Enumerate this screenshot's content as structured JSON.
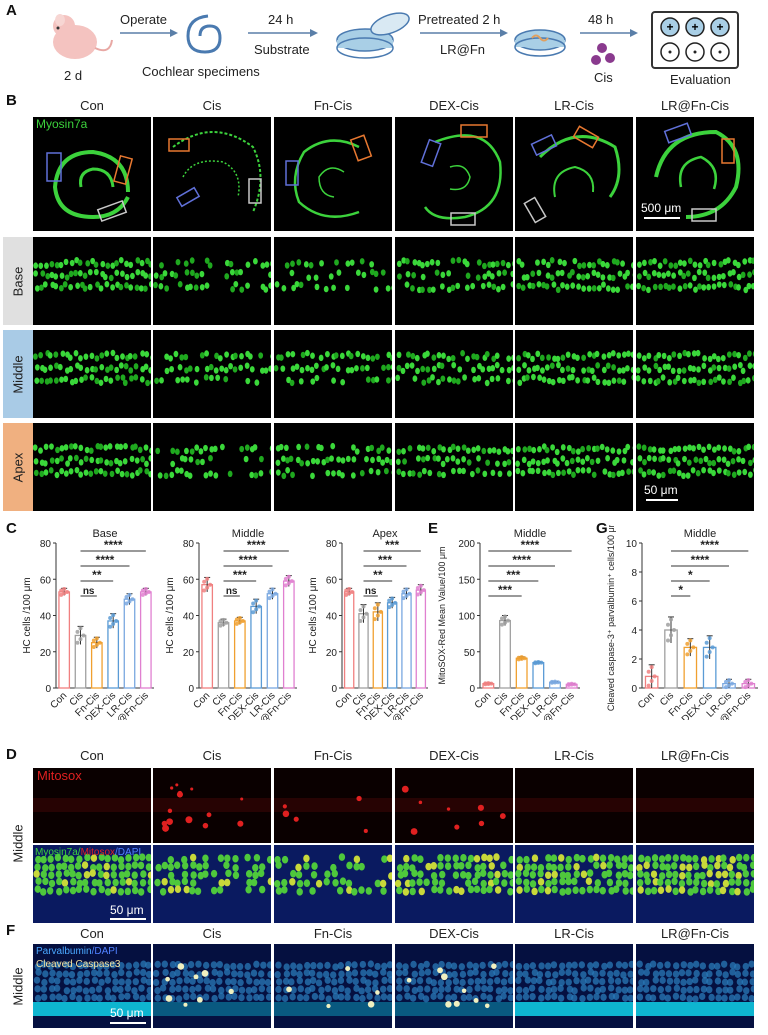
{
  "panelA": {
    "label": "A",
    "steps": {
      "age": "2 d",
      "operate": "Operate",
      "specimens": "Cochlear specimens",
      "time1": "24 h",
      "substrate": "Substrate",
      "pretreat": "Pretreated 2 h",
      "agent": "LR@Fn",
      "time2": "48 h",
      "cis": "Cis",
      "evaluation": "Evaluation"
    }
  },
  "panelB": {
    "label": "B",
    "groups": [
      "Con",
      "Cis",
      "Fn-Cis",
      "DEX-Cis",
      "LR-Cis",
      "LR@Fn-Cis"
    ],
    "stain": "Myosin7a",
    "rows": [
      "Base",
      "Middle",
      "Apex"
    ],
    "scale_top": "500 μm",
    "scale_bottom": "50 μm"
  },
  "panelC": {
    "label": "C",
    "ylabel": "HC cells /100 μm",
    "charts": [
      {
        "title": "Base",
        "sig": [
          "****",
          "****",
          "**",
          "ns"
        ]
      },
      {
        "title": "Middle",
        "sig": [
          "****",
          "****",
          "***",
          "ns"
        ]
      },
      {
        "title": "Apex",
        "sig": [
          "***",
          "***",
          "**",
          "ns"
        ]
      }
    ]
  },
  "panelE": {
    "label": "E",
    "title": "Middle",
    "ylabel": "MitoSOX-Red Mean Value/100 μm",
    "sig": [
      "****",
      "****",
      "***",
      "***"
    ]
  },
  "panelG": {
    "label": "G",
    "title": "Middle",
    "ylabel": "Cleaved caspase-3⁺ parvalbumin⁺ cells/100 μm",
    "sig": [
      "****",
      "****",
      "*",
      "*"
    ]
  },
  "panelD": {
    "label": "D",
    "side": "Middle",
    "stain_top": "Mitosox",
    "stain_bottom_a": "Myosin7a/",
    "stain_bottom_b": "Mitosox",
    "stain_bottom_c": "/DAPI",
    "scale": "50 μm"
  },
  "panelF": {
    "label": "F",
    "side": "Middle",
    "stain_a": "Parvalbumin",
    "stain_b": "/DAPI",
    "stain_c": "Cleaved Caspase3",
    "scale": "50 μm"
  },
  "chart_data": [
    {
      "type": "bar",
      "title": "Base",
      "ylabel": "HC cells /100 μm",
      "ylim": [
        0,
        80
      ],
      "yticks": [
        0,
        20,
        40,
        60,
        80
      ],
      "categories": [
        "Con",
        "Cis",
        "Fn-Cis",
        "DEX-Cis",
        "LR-Cis",
        "LR@Fn-Cis"
      ],
      "values": [
        53,
        29,
        25,
        37,
        49,
        53
      ],
      "errors": [
        2,
        5,
        3,
        4,
        3,
        2
      ],
      "colors": [
        "#f08080",
        "#a0a0a0",
        "#f0a030",
        "#5b9bd5",
        "#7aa8e0",
        "#e080d0"
      ]
    },
    {
      "type": "bar",
      "title": "Middle",
      "ylabel": "HC cells /100 μm",
      "ylim": [
        0,
        80
      ],
      "yticks": [
        0,
        20,
        40,
        60,
        80
      ],
      "categories": [
        "Con",
        "Cis",
        "Fn-Cis",
        "DEX-Cis",
        "LR-Cis",
        "LR@Fn-Cis"
      ],
      "values": [
        57,
        36,
        37,
        45,
        52,
        59
      ],
      "errors": [
        4,
        2,
        2,
        4,
        3,
        3
      ],
      "colors": [
        "#f08080",
        "#a0a0a0",
        "#f0a030",
        "#5b9bd5",
        "#7aa8e0",
        "#e080d0"
      ]
    },
    {
      "type": "bar",
      "title": "Apex",
      "ylabel": "HC cells /100 μm",
      "ylim": [
        0,
        80
      ],
      "yticks": [
        0,
        20,
        40,
        60,
        80
      ],
      "categories": [
        "Con",
        "Cis",
        "Fn-Cis",
        "DEX-Cis",
        "LR-Cis",
        "LR@Fn-Cis"
      ],
      "values": [
        53,
        41,
        42,
        47,
        52,
        54
      ],
      "errors": [
        2,
        5,
        5,
        3,
        3,
        3
      ],
      "colors": [
        "#f08080",
        "#a0a0a0",
        "#f0a030",
        "#5b9bd5",
        "#7aa8e0",
        "#e080d0"
      ]
    },
    {
      "type": "bar",
      "title": "Middle",
      "ylabel": "MitoSOX-Red Mean Value/100 μm",
      "ylim": [
        0,
        200
      ],
      "yticks": [
        0,
        50,
        100,
        150,
        200
      ],
      "categories": [
        "Con",
        "Cis",
        "Fn-Cis",
        "DEX-Cis",
        "LR-Cis",
        "LR@Fn-Cis"
      ],
      "values": [
        6,
        93,
        41,
        35,
        8,
        5
      ],
      "errors": [
        1,
        7,
        2,
        1,
        1,
        1
      ],
      "colors": [
        "#f08080",
        "#a0a0a0",
        "#f0a030",
        "#5b9bd5",
        "#7aa8e0",
        "#e080d0"
      ]
    },
    {
      "type": "bar",
      "title": "Middle",
      "ylabel": "Cleaved caspase-3⁺ parvalbumin⁺ cells/100 μm",
      "ylim": [
        0,
        10
      ],
      "yticks": [
        0,
        2,
        4,
        6,
        8,
        10
      ],
      "categories": [
        "Con",
        "Cis",
        "Fn-Cis",
        "DEX-Cis",
        "LR-Cis",
        "LR@Fn-Cis"
      ],
      "values": [
        0.8,
        4.0,
        2.8,
        2.8,
        0.3,
        0.3
      ],
      "errors": [
        0.8,
        0.9,
        0.6,
        0.8,
        0.3,
        0.3
      ],
      "colors": [
        "#f08080",
        "#a0a0a0",
        "#f0a030",
        "#5b9bd5",
        "#7aa8e0",
        "#e080d0"
      ]
    }
  ]
}
